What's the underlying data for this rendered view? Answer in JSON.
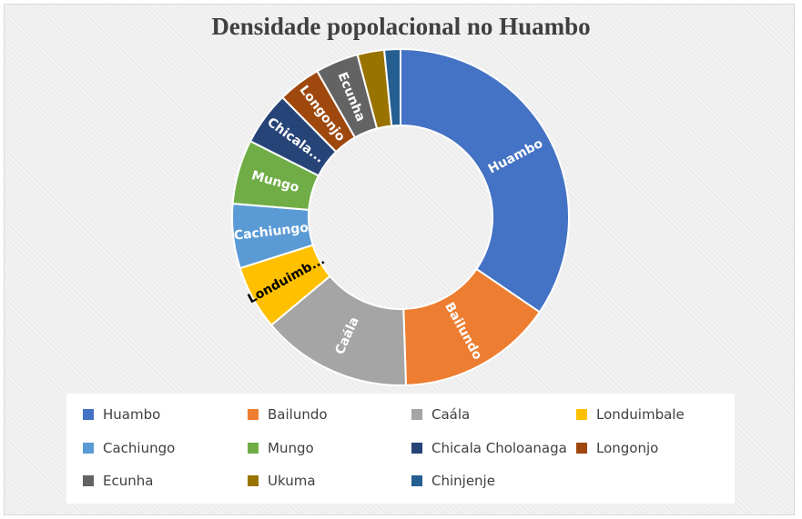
{
  "chart_data": {
    "type": "doughnut",
    "title": "Densidade popolacional no Huambo",
    "categories": [
      "Huambo",
      "Bailundo",
      "Caála",
      "Londuimbale",
      "Cachiungo",
      "Mungo",
      "Chicala Choloanaga",
      "Longonjo",
      "Ecunha",
      "Ukuma",
      "Chinjenje"
    ],
    "values": [
      33.5,
      14.5,
      14.0,
      6.0,
      6.0,
      6.0,
      5.0,
      4.0,
      4.0,
      2.5,
      1.5
    ],
    "slice_labels": [
      "Huambo",
      "Bailundo",
      "Caála",
      "Londuimb...",
      "Cachiungo",
      "Mungo",
      "Chicala...",
      "Longonjo",
      "Ecunha",
      "",
      ""
    ],
    "colors": [
      "#4472c4",
      "#ed7d31",
      "#a5a5a5",
      "#ffc000",
      "#5b9bd5",
      "#70ad47",
      "#264478",
      "#9e480e",
      "#636363",
      "#997300",
      "#255e91"
    ],
    "label_colors": [
      "#ffffff",
      "#ffffff",
      "#ffffff",
      "#000000",
      "#ffffff",
      "#ffffff",
      "#ffffff",
      "#ffffff",
      "#ffffff",
      "#ffffff",
      "#ffffff"
    ],
    "legend_position": "bottom",
    "grid": false
  }
}
